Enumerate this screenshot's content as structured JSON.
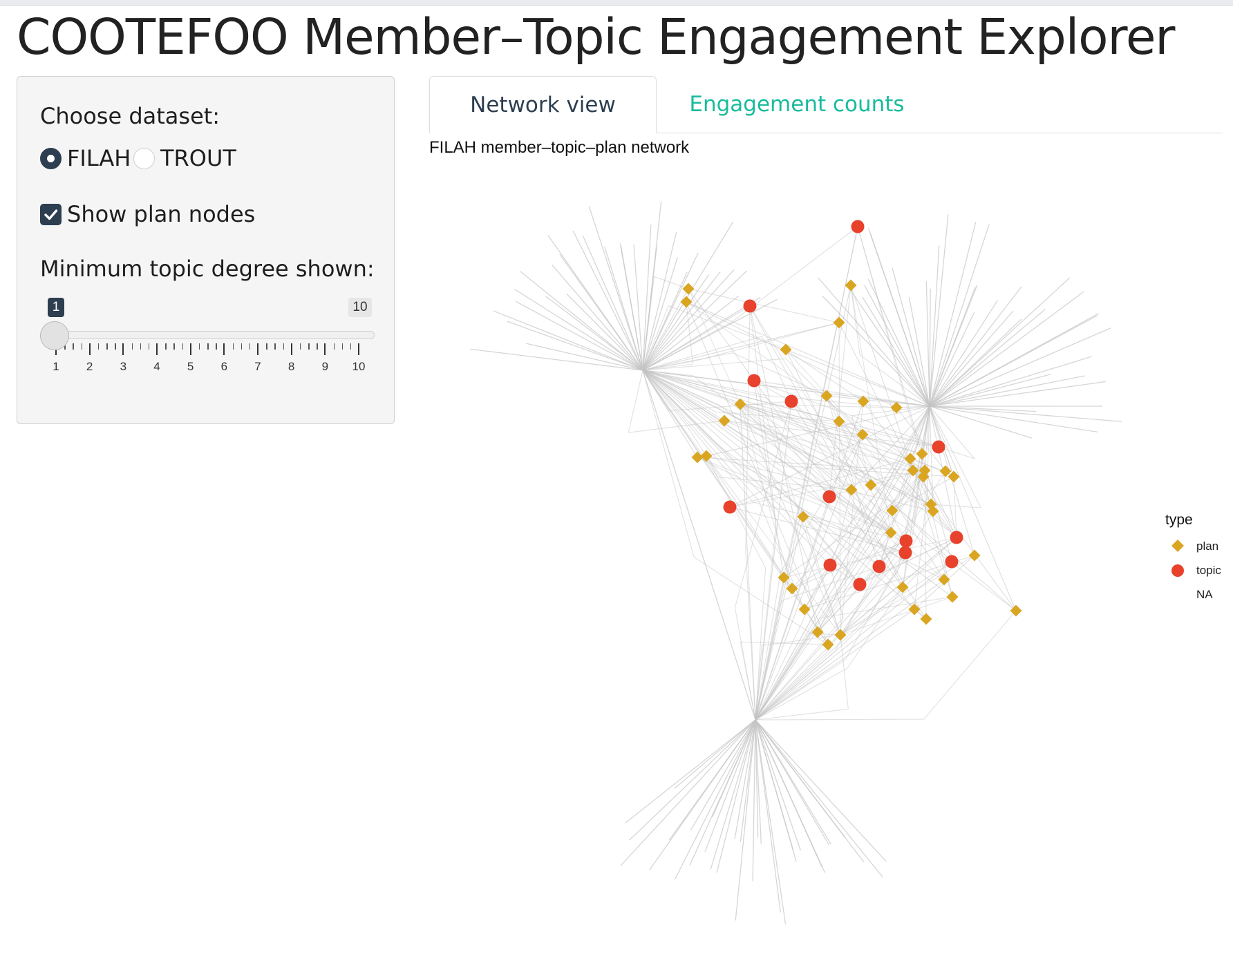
{
  "app": {
    "title": "COOTEFOO Member–Topic Engagement Explorer"
  },
  "sidebar": {
    "dataset_label": "Choose dataset:",
    "dataset_options": [
      {
        "label": "FILAH",
        "selected": true
      },
      {
        "label": "TROUT",
        "selected": false
      }
    ],
    "show_plan_label": "Show plan nodes",
    "show_plan_checked": true,
    "degree_label": "Minimum topic degree shown:",
    "degree_slider": {
      "min": 1,
      "max": 10,
      "value": 1,
      "min_badge": "1",
      "max_badge": "10",
      "tick_labels": [
        "1",
        "2",
        "3",
        "4",
        "5",
        "6",
        "7",
        "8",
        "9",
        "10"
      ]
    }
  },
  "tabs": [
    {
      "label": "Network view",
      "active": true
    },
    {
      "label": "Engagement counts",
      "active": false
    }
  ],
  "network": {
    "title": "FILAH member–topic–plan network",
    "legend": {
      "title": "type",
      "items": [
        "plan",
        "topic",
        "NA"
      ]
    },
    "colors": {
      "plan": "#DAA520",
      "topic": "#E8412C",
      "edge": "#c4c4c4",
      "accent": "#2c3e50",
      "tab_inactive": "#18bc9c"
    }
  }
}
